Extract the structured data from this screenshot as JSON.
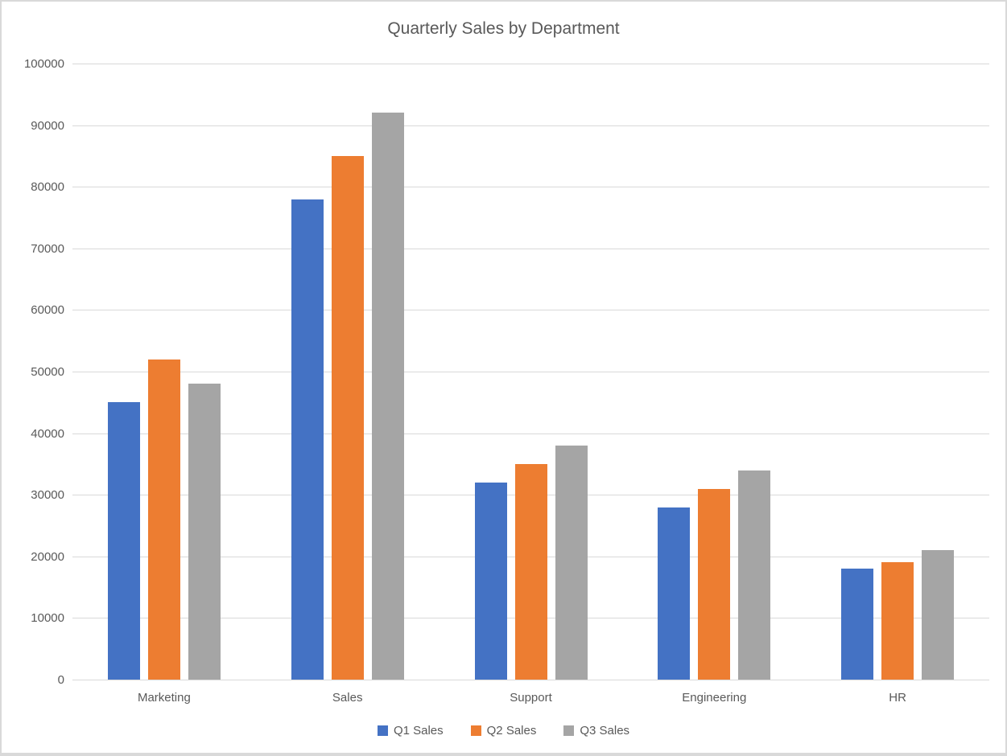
{
  "window": {
    "background_color": "#ffffff",
    "border_color": "#d9d9d9"
  },
  "chart_data": {
    "type": "bar",
    "title": "Quarterly Sales by Department",
    "categories": [
      "Marketing",
      "Sales",
      "Support",
      "Engineering",
      "HR"
    ],
    "series": [
      {
        "name": "Q1 Sales",
        "color": "#4472C4",
        "values": [
          45000,
          78000,
          32000,
          28000,
          18000
        ]
      },
      {
        "name": "Q2 Sales",
        "color": "#ED7D31",
        "values": [
          52000,
          85000,
          35000,
          31000,
          19000
        ]
      },
      {
        "name": "Q3 Sales",
        "color": "#A5A5A5",
        "values": [
          48000,
          92000,
          38000,
          34000,
          21000
        ]
      }
    ],
    "xlabel": "",
    "ylabel": "",
    "ylim": [
      0,
      100000
    ],
    "ytick_step": 10000,
    "ytick_labels": [
      "0",
      "10000",
      "20000",
      "30000",
      "40000",
      "50000",
      "60000",
      "70000",
      "80000",
      "90000",
      "100000"
    ],
    "grid": true,
    "gridline_color": "#d9d9d9",
    "text_color": "#595959",
    "legend_position": "bottom",
    "legend_labels": [
      "Q1 Sales",
      "Q2 Sales",
      "Q3 Sales"
    ]
  }
}
